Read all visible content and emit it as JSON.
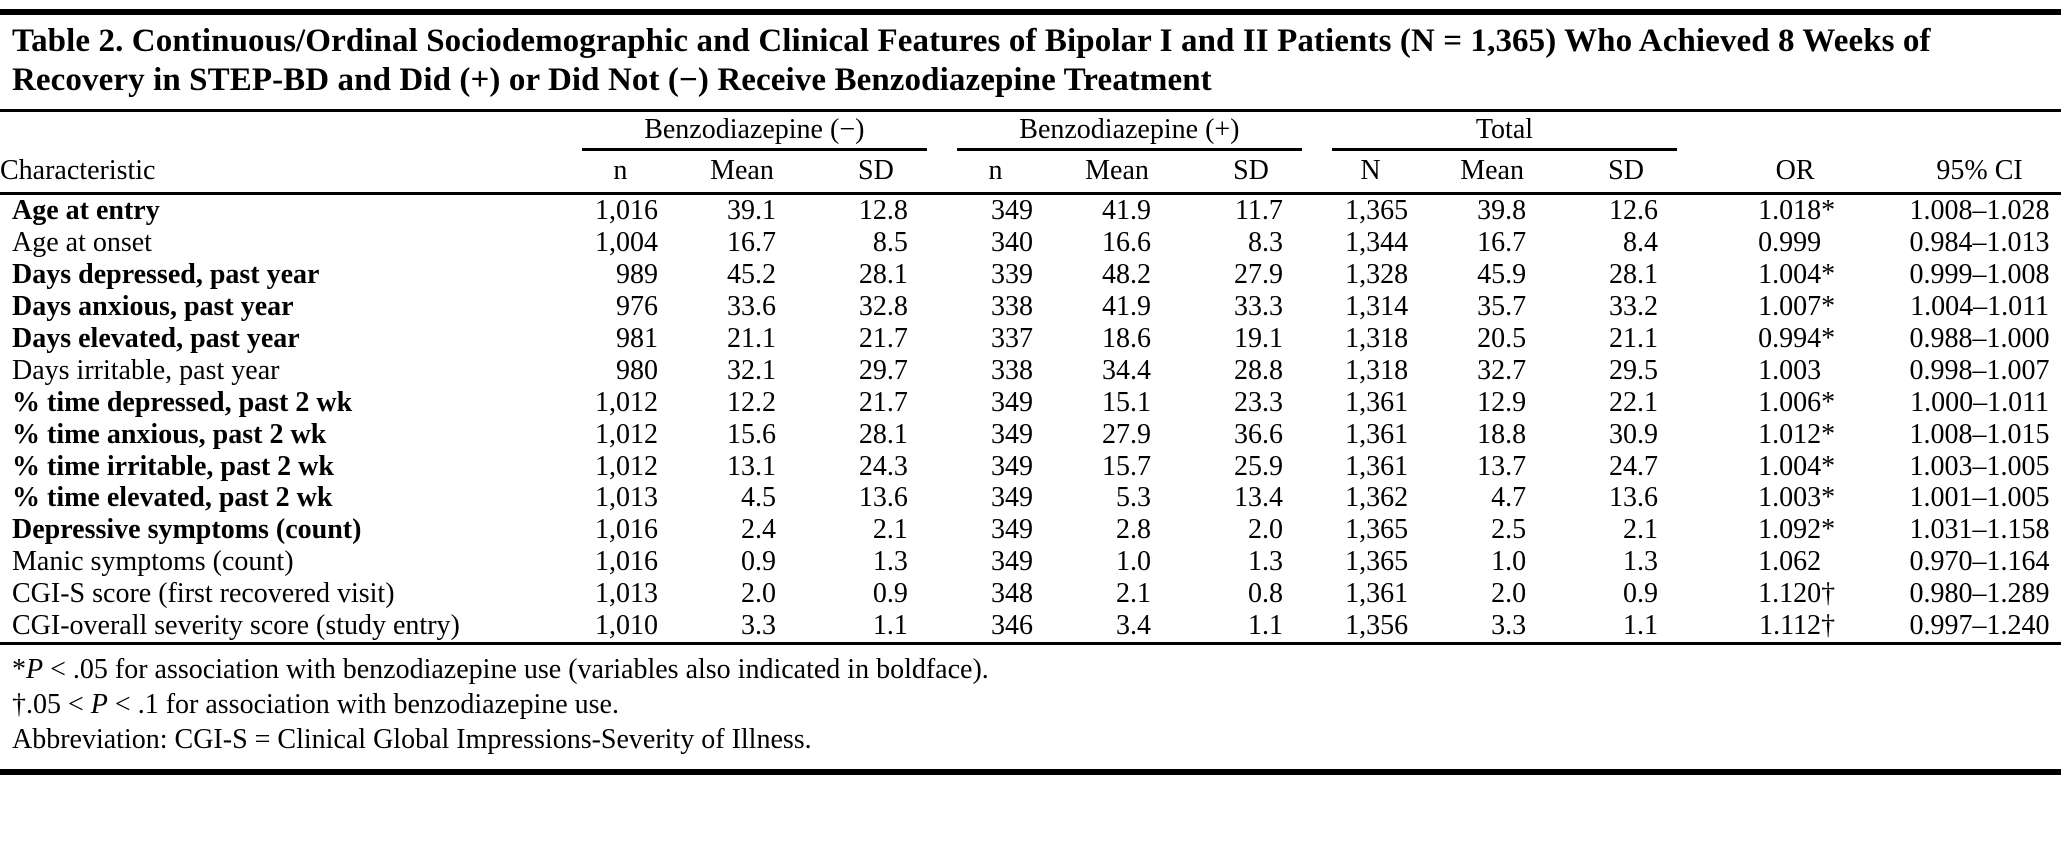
{
  "page": {
    "title": "Table 2. Continuous/Ordinal Sociodemographic and Clinical Features of Bipolar I and II Patients (N = 1,365) Who Achieved 8 Weeks of Recovery in STEP-BD and Did (+) or Did Not (−) Receive Benzodiazepine Treatment"
  },
  "table": {
    "characteristic_header": "Characteristic",
    "groups": [
      {
        "label": "Benzodiazepine (−)",
        "cols": [
          "n",
          "Mean",
          "SD"
        ]
      },
      {
        "label": "Benzodiazepine (+)",
        "cols": [
          "n",
          "Mean",
          "SD"
        ]
      },
      {
        "label": "Total",
        "cols": [
          "N",
          "Mean",
          "SD"
        ]
      }
    ],
    "or_header": "OR",
    "ci_header": "95% CI",
    "rows": [
      {
        "label": "Age at entry",
        "bold": true,
        "values": [
          "1,016",
          "39.1",
          "12.8",
          "349",
          "41.9",
          "11.7",
          "1,365",
          "39.8",
          "12.6"
        ],
        "or": "1.018*",
        "ci": "1.008–1.028"
      },
      {
        "label": "Age at onset",
        "bold": false,
        "values": [
          "1,004",
          "16.7",
          "8.5",
          "340",
          "16.6",
          "8.3",
          "1,344",
          "16.7",
          "8.4"
        ],
        "or": "0.999",
        "ci": "0.984–1.013"
      },
      {
        "label": "Days depressed, past year",
        "bold": true,
        "values": [
          "989",
          "45.2",
          "28.1",
          "339",
          "48.2",
          "27.9",
          "1,328",
          "45.9",
          "28.1"
        ],
        "or": "1.004*",
        "ci": "0.999–1.008"
      },
      {
        "label": "Days anxious, past year",
        "bold": true,
        "values": [
          "976",
          "33.6",
          "32.8",
          "338",
          "41.9",
          "33.3",
          "1,314",
          "35.7",
          "33.2"
        ],
        "or": "1.007*",
        "ci": "1.004–1.011"
      },
      {
        "label": "Days elevated, past year",
        "bold": true,
        "values": [
          "981",
          "21.1",
          "21.7",
          "337",
          "18.6",
          "19.1",
          "1,318",
          "20.5",
          "21.1"
        ],
        "or": "0.994*",
        "ci": "0.988–1.000"
      },
      {
        "label": "Days irritable, past year",
        "bold": false,
        "values": [
          "980",
          "32.1",
          "29.7",
          "338",
          "34.4",
          "28.8",
          "1,318",
          "32.7",
          "29.5"
        ],
        "or": "1.003",
        "ci": "0.998–1.007"
      },
      {
        "label": "% time depressed, past 2 wk",
        "bold": true,
        "values": [
          "1,012",
          "12.2",
          "21.7",
          "349",
          "15.1",
          "23.3",
          "1,361",
          "12.9",
          "22.1"
        ],
        "or": "1.006*",
        "ci": "1.000–1.011"
      },
      {
        "label": "% time anxious, past 2 wk",
        "bold": true,
        "values": [
          "1,012",
          "15.6",
          "28.1",
          "349",
          "27.9",
          "36.6",
          "1,361",
          "18.8",
          "30.9"
        ],
        "or": "1.012*",
        "ci": "1.008–1.015"
      },
      {
        "label": "% time irritable, past 2 wk",
        "bold": true,
        "values": [
          "1,012",
          "13.1",
          "24.3",
          "349",
          "15.7",
          "25.9",
          "1,361",
          "13.7",
          "24.7"
        ],
        "or": "1.004*",
        "ci": "1.003–1.005"
      },
      {
        "label": "% time elevated, past 2 wk",
        "bold": true,
        "values": [
          "1,013",
          "4.5",
          "13.6",
          "349",
          "5.3",
          "13.4",
          "1,362",
          "4.7",
          "13.6"
        ],
        "or": "1.003*",
        "ci": "1.001–1.005"
      },
      {
        "label": "Depressive symptoms (count)",
        "bold": true,
        "values": [
          "1,016",
          "2.4",
          "2.1",
          "349",
          "2.8",
          "2.0",
          "1,365",
          "2.5",
          "2.1"
        ],
        "or": "1.092*",
        "ci": "1.031–1.158"
      },
      {
        "label": "Manic symptoms (count)",
        "bold": false,
        "values": [
          "1,016",
          "0.9",
          "1.3",
          "349",
          "1.0",
          "1.3",
          "1,365",
          "1.0",
          "1.3"
        ],
        "or": "1.062",
        "ci": "0.970–1.164"
      },
      {
        "label": "CGI-S score (first recovered visit)",
        "bold": false,
        "values": [
          "1,013",
          "2.0",
          "0.9",
          "348",
          "2.1",
          "0.8",
          "1,361",
          "2.0",
          "0.9"
        ],
        "or": "1.120†",
        "ci": "0.980–1.289"
      },
      {
        "label": "CGI-overall severity score (study entry)",
        "bold": false,
        "values": [
          "1,010",
          "3.3",
          "1.1",
          "346",
          "3.4",
          "1.1",
          "1,356",
          "3.3",
          "1.1"
        ],
        "or": "1.112†",
        "ci": "0.997–1.240"
      }
    ],
    "footnotes": [
      [
        {
          "text": "*",
          "italic": false
        },
        {
          "text": "P",
          "italic": true
        },
        {
          "text": " < .05 for association with benzodiazepine use (variables also indicated in boldface).",
          "italic": false
        }
      ],
      [
        {
          "text": "†.05 < ",
          "italic": false
        },
        {
          "text": "P",
          "italic": true
        },
        {
          "text": " < .1 for association with benzodiazepine use.",
          "italic": false
        }
      ],
      [
        {
          "text": "Abbreviation: CGI-S = Clinical Global Impressions-Severity of Illness.",
          "italic": false
        }
      ]
    ]
  }
}
